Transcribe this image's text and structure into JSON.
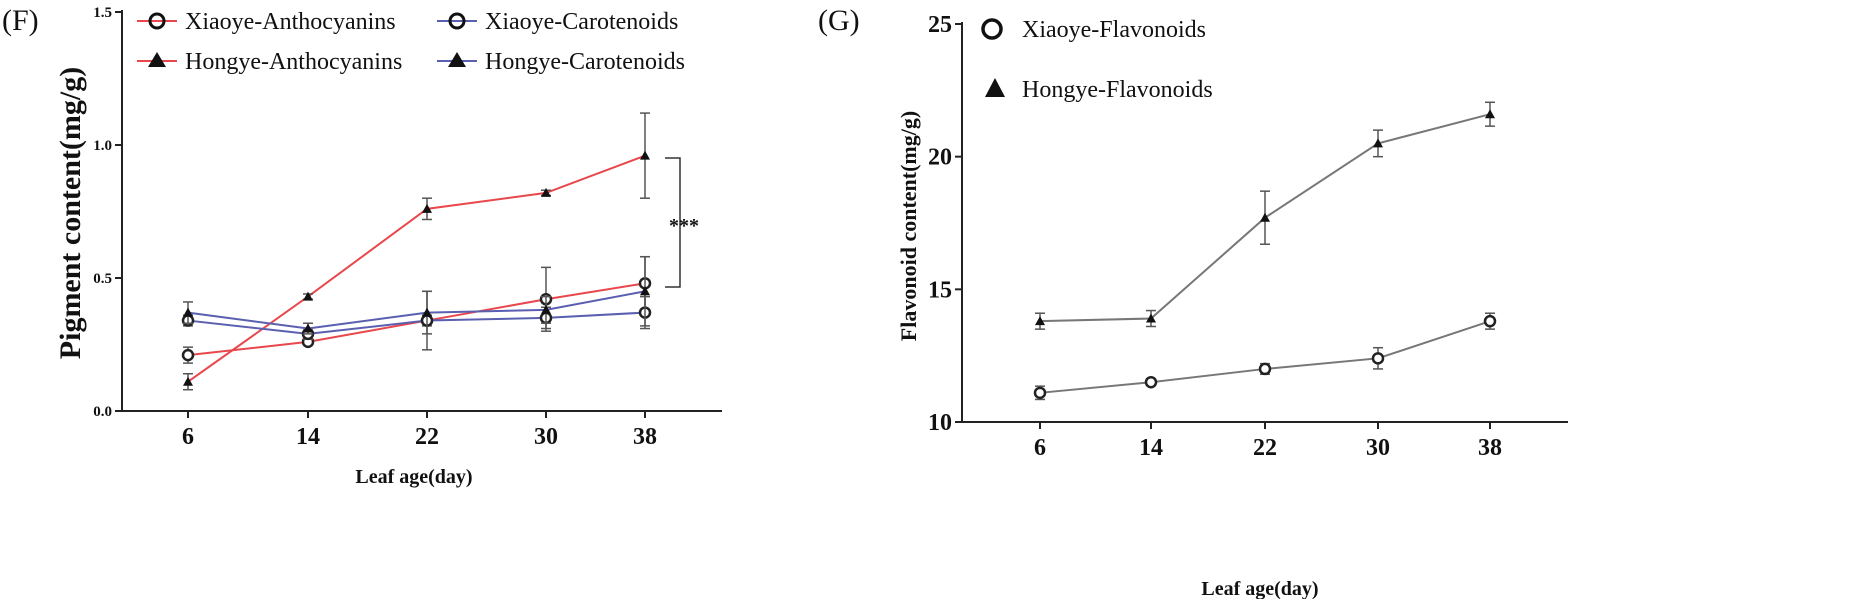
{
  "figure": {
    "panels": [
      "(F)",
      "(G)"
    ]
  },
  "chart_data": [
    {
      "id": "F",
      "type": "line",
      "panel_label": "(F)",
      "xlabel": "Leaf age(day)",
      "ylabel": "Pigment content(mg/g)",
      "categories": [
        "6",
        "14",
        "22",
        "30",
        "38"
      ],
      "ylim": [
        0,
        1.5
      ],
      "yticks": [
        "0.0",
        "0.5",
        "1.0",
        "1.5"
      ],
      "ytick_values": [
        0,
        0.5,
        1.0,
        1.5
      ],
      "legend_position": "top",
      "annotation": "***",
      "series": [
        {
          "name": "Xiaoye-Anthocyanins",
          "color": "#e8474c",
          "marker": "circle",
          "values": [
            0.21,
            0.26,
            0.34,
            0.42,
            0.48
          ],
          "errors": [
            0.03,
            0.01,
            0.11,
            0.12,
            0.1
          ]
        },
        {
          "name": "Hongye-Anthocyanins",
          "color": "#e8474c",
          "marker": "triangle",
          "values": [
            0.11,
            0.43,
            0.76,
            0.82,
            0.96
          ],
          "errors": [
            0.03,
            0.01,
            0.04,
            0.01,
            0.16
          ]
        },
        {
          "name": "Xiaoye-Carotenoids",
          "color": "#5a5fb0",
          "marker": "circle",
          "values": [
            0.34,
            0.29,
            0.34,
            0.35,
            0.37
          ],
          "errors": [
            0.02,
            0.02,
            0.02,
            0.04,
            0.06
          ]
        },
        {
          "name": "Hongye-Carotenoids",
          "color": "#5a5fb0",
          "marker": "triangle",
          "values": [
            0.37,
            0.31,
            0.37,
            0.38,
            0.45
          ],
          "errors": [
            0.04,
            0.02,
            0.08,
            0.05,
            0.13
          ]
        }
      ]
    },
    {
      "id": "G",
      "type": "line",
      "panel_label": "(G)",
      "xlabel": "Leaf age(day)",
      "ylabel": "Flavonoid content(mg/g)",
      "categories": [
        "6",
        "14",
        "22",
        "30",
        "38"
      ],
      "ylim": [
        10,
        25
      ],
      "yticks": [
        "10",
        "15",
        "20",
        "25"
      ],
      "ytick_values": [
        10,
        15,
        20,
        25
      ],
      "legend_position": "top-left",
      "series": [
        {
          "name": "Xiaoye-Flavonoids",
          "color": "#777777",
          "marker": "circle",
          "values": [
            11.1,
            11.5,
            12.0,
            12.4,
            13.8
          ],
          "errors": [
            0.25,
            0.12,
            0.2,
            0.4,
            0.3
          ]
        },
        {
          "name": "Hongye-Flavonoids",
          "color": "#777777",
          "marker": "triangle",
          "values": [
            13.8,
            13.9,
            17.7,
            20.5,
            21.6
          ],
          "errors": [
            0.3,
            0.3,
            1.0,
            0.5,
            0.45
          ]
        }
      ]
    }
  ]
}
